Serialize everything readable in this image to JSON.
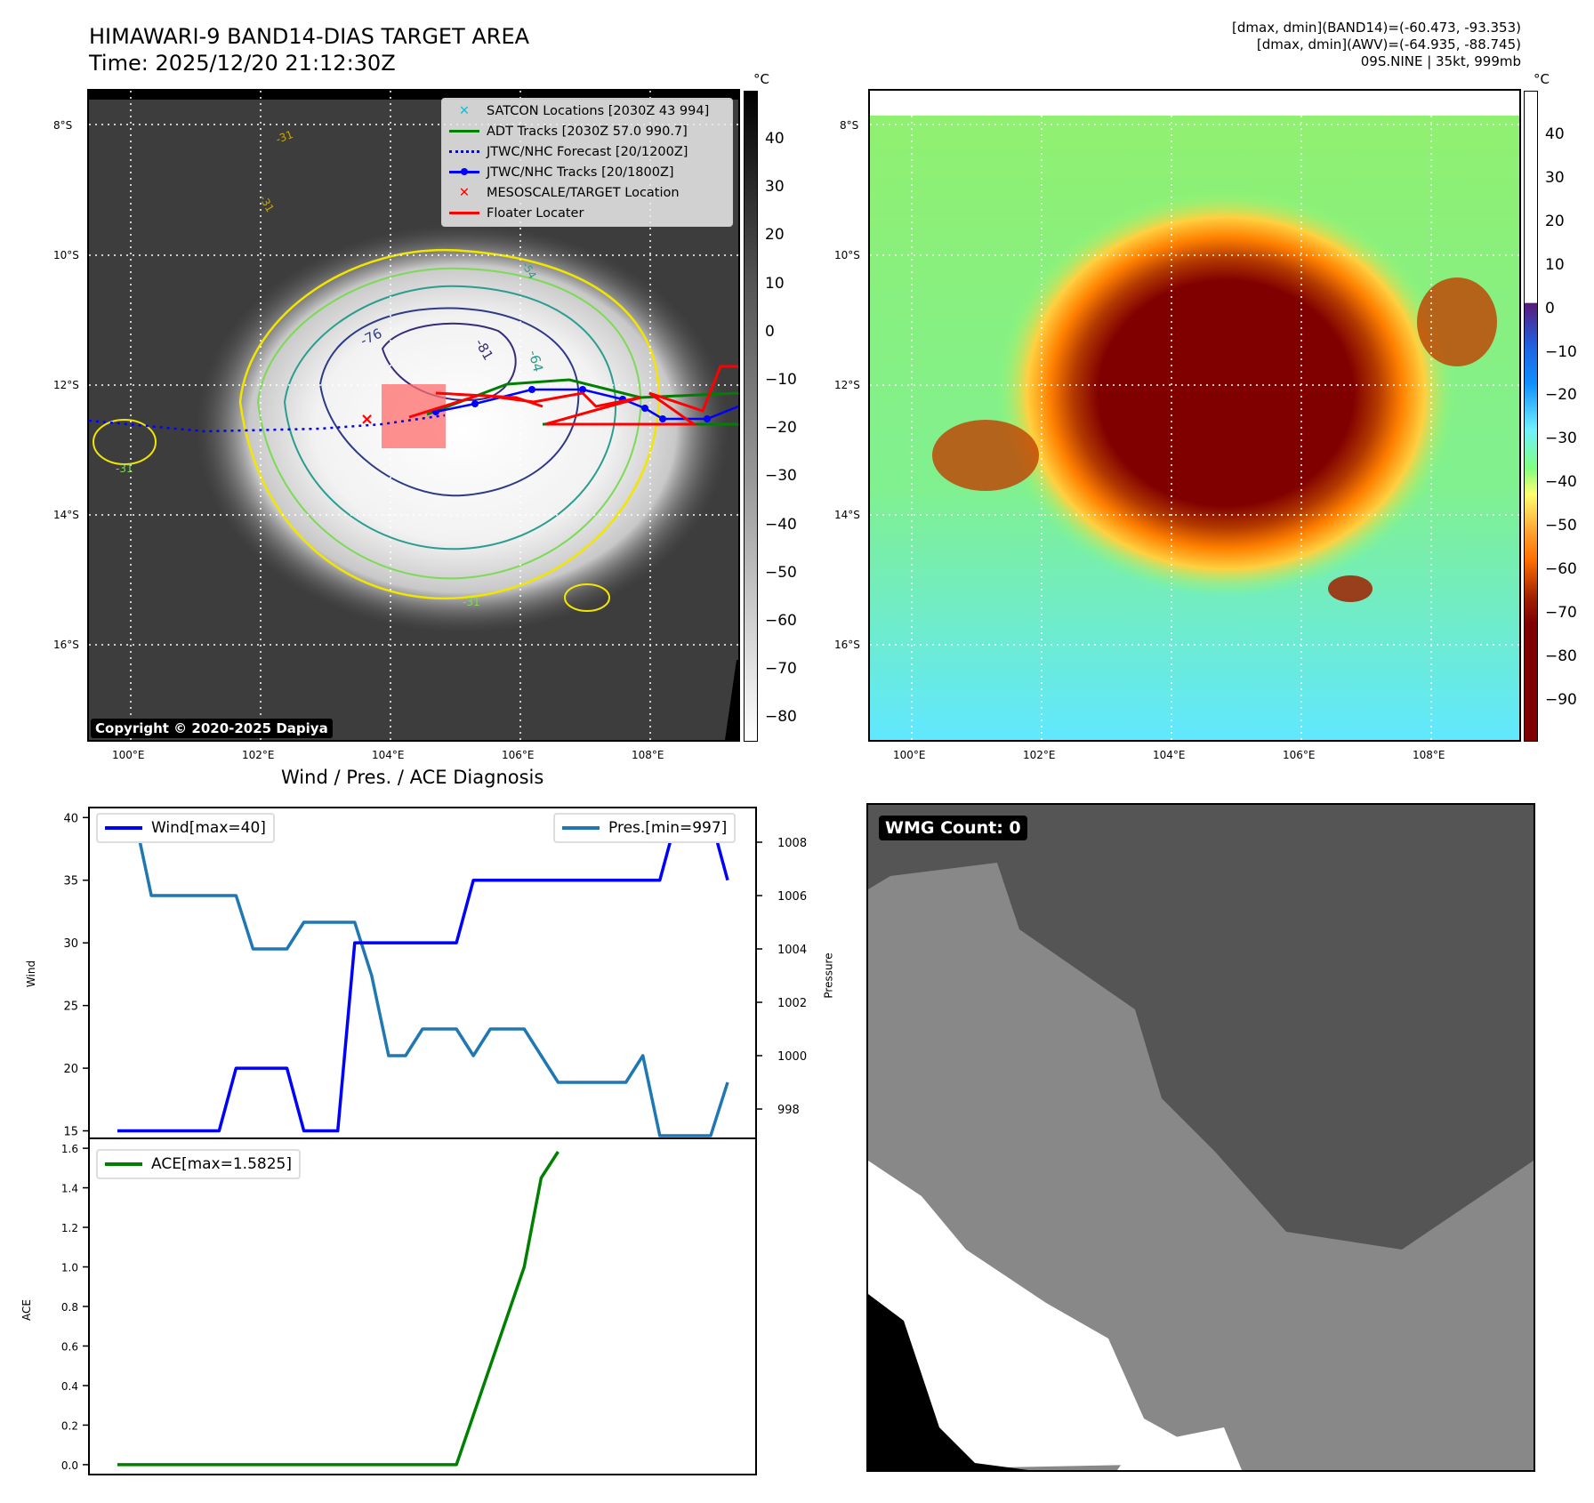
{
  "header": {
    "title": "HIMAWARI-9 BAND14-DIAS TARGET AREA",
    "time": "Time: 2025/12/20 21:12:30Z",
    "info_lines": [
      "[dmax, dmin](BAND14)=(-60.473, -93.353)",
      "[dmax, dmin](AWV)=(-64.935, -88.745)",
      "09S.NINE | 35kt, 999mb"
    ]
  },
  "map": {
    "lat_ticks": [
      "8°S",
      "10°S",
      "12°S",
      "14°S",
      "16°S"
    ],
    "lon_ticks": [
      "100°E",
      "102°E",
      "104°E",
      "106°E",
      "108°E"
    ],
    "copyright": "Copyright © 2020-2025 Dapiya",
    "contour_labels": [
      "-31",
      "-31",
      "-31",
      "-31",
      "-54",
      "-64",
      "-76",
      "-81"
    ],
    "legend": [
      {
        "label": "SATCON Locations [2030Z 43 994]",
        "color": "#17becf",
        "marker": "x"
      },
      {
        "label": "ADT Tracks [2030Z 57.0 990.7]",
        "color": "#008000",
        "marker": "line"
      },
      {
        "label": "JTWC/NHC Forecast [20/1200Z]",
        "color": "#0000ff",
        "marker": "dotted"
      },
      {
        "label": "JTWC/NHC Tracks [20/1800Z]",
        "color": "#0000ff",
        "marker": "line-dot"
      },
      {
        "label": "MESOSCALE/TARGET Location",
        "color": "#ff0000",
        "marker": "x"
      },
      {
        "label": "Floater Locater",
        "color": "#ff0000",
        "marker": "line"
      }
    ],
    "colorbar_gray": {
      "unit": "°C",
      "ticks": [
        "40",
        "30",
        "20",
        "10",
        "0",
        "−10",
        "−20",
        "−30",
        "−40",
        "−50",
        "−60",
        "−70",
        "−80"
      ]
    },
    "colorbar_color": {
      "unit": "°C",
      "ticks": [
        "40",
        "30",
        "20",
        "10",
        "0",
        "−10",
        "−20",
        "−30",
        "−40",
        "−50",
        "−60",
        "−70",
        "−80",
        "−90"
      ]
    }
  },
  "wmg": {
    "label": "WMG Count: 0"
  },
  "chart_data": [
    {
      "type": "line",
      "title": "Wind / Pres. / ACE Diagnosis",
      "ylabel": "Wind",
      "y2label": "Pressure",
      "ylim": [
        14.4,
        40.8
      ],
      "y2lim": [
        996.9,
        1009.3
      ],
      "yticks": [
        "15",
        "20",
        "25",
        "30",
        "35",
        "40"
      ],
      "y2ticks": [
        "998",
        "1000",
        "1002",
        "1004",
        "1006",
        "1008"
      ],
      "x": [
        0,
        1,
        2,
        3,
        4,
        5,
        6,
        7,
        8,
        9,
        10,
        11,
        12,
        13,
        14,
        15,
        16,
        17,
        18,
        19,
        20,
        21,
        22,
        23,
        24,
        25,
        26,
        27,
        28,
        29,
        30,
        31,
        32,
        33,
        34,
        35,
        36
      ],
      "series": [
        {
          "name": "Wind[max=40]",
          "color": "#0000ff",
          "axis": "left",
          "values": [
            15,
            15,
            15,
            15,
            15,
            15,
            15,
            20,
            20,
            20,
            20,
            15,
            15,
            15,
            30,
            30,
            30,
            30,
            30,
            30,
            30,
            35,
            35,
            35,
            35,
            35,
            35,
            35,
            35,
            35,
            35,
            35,
            35,
            40,
            40,
            40,
            35
          ]
        },
        {
          "name": "Pres.[min=997]",
          "color": "#1f77b4",
          "axis": "right",
          "values": [
            1009,
            1009,
            1006,
            1006,
            1006,
            1006,
            1006,
            1006,
            1004,
            1004,
            1004,
            1005,
            1005,
            1005,
            1005,
            1003,
            1000,
            1000,
            1001,
            1001,
            1001,
            1000,
            1001,
            1001,
            1001,
            1000,
            999,
            999,
            999,
            999,
            999,
            1000,
            997,
            997,
            997,
            997,
            999
          ]
        }
      ]
    },
    {
      "type": "line",
      "ylabel": "ACE",
      "ylim": [
        -0.05,
        1.65
      ],
      "yticks": [
        "0.0",
        "0.2",
        "0.4",
        "0.6",
        "0.8",
        "1.0",
        "1.2",
        "1.4",
        "1.6"
      ],
      "x": [
        0,
        20,
        24,
        25,
        26
      ],
      "series": [
        {
          "name": "ACE[max=1.5825]",
          "color": "#008000",
          "values": [
            0.0,
            0.0,
            1.0,
            1.45,
            1.5825
          ]
        }
      ]
    }
  ]
}
